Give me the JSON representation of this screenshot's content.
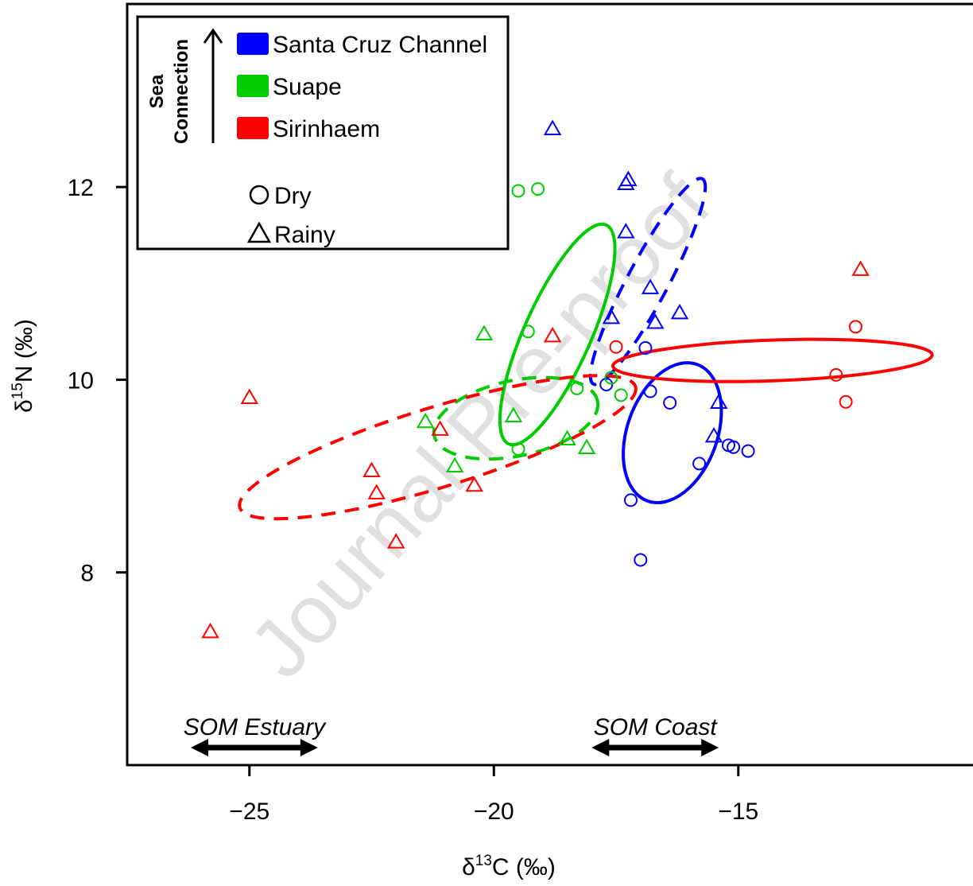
{
  "chart_data": {
    "type": "scatter",
    "xlabel": {
      "prefix": "δ",
      "sup": "13",
      "suffix": "C (‰)"
    },
    "ylabel": {
      "prefix": "δ",
      "sup": "15",
      "suffix": "N (‰)"
    },
    "xlim": [
      -27.5,
      -10.2
    ],
    "ylim": [
      6.0,
      13.9
    ],
    "xticks": [
      -25,
      -20,
      -15
    ],
    "xtick_labels": [
      "−25",
      "−20",
      "−15"
    ],
    "yticks": [
      8,
      10,
      12
    ],
    "ytick_labels": [
      "8",
      "10",
      "12"
    ],
    "grid": false,
    "legend": {
      "placement": "top-left",
      "arrow_label_line1": "Sea",
      "arrow_label_line2": "Connection",
      "sites": [
        {
          "name": "Santa Cruz Channel",
          "color": "#0000ff"
        },
        {
          "name": "Suape",
          "color": "#00cc00"
        },
        {
          "name": "Sirinhaem",
          "color": "#ff0000"
        }
      ],
      "seasons": [
        {
          "name": "Dry",
          "marker": "circle"
        },
        {
          "name": "Rainy",
          "marker": "triangle"
        }
      ]
    },
    "watermark": "Journal Pre-proof",
    "annotations": [
      {
        "text": "SOM Estuary",
        "x_from": -26.2,
        "x_to": -23.6
      },
      {
        "text": "SOM Coast",
        "x_from": -18.0,
        "x_to": -15.4
      }
    ],
    "series": [
      {
        "name": "Santa Cruz Channel",
        "season": "Dry",
        "marker": "circle",
        "color": "#0000ff",
        "points": [
          [
            -17.7,
            9.95
          ],
          [
            -16.9,
            10.33
          ],
          [
            -16.8,
            9.88
          ],
          [
            -16.4,
            9.76
          ],
          [
            -15.8,
            9.13
          ],
          [
            -15.2,
            9.32
          ],
          [
            -15.1,
            9.3
          ],
          [
            -14.8,
            9.26
          ],
          [
            -17.2,
            8.75
          ],
          [
            -17.0,
            8.13
          ]
        ]
      },
      {
        "name": "Santa Cruz Channel",
        "season": "Rainy",
        "marker": "triangle",
        "color": "#0000ff",
        "points": [
          [
            -18.8,
            12.6
          ],
          [
            -17.3,
            12.03
          ],
          [
            -17.25,
            12.07
          ],
          [
            -17.3,
            11.53
          ],
          [
            -16.8,
            10.95
          ],
          [
            -17.6,
            10.64
          ],
          [
            -16.7,
            10.59
          ],
          [
            -16.2,
            10.69
          ],
          [
            -15.4,
            9.76
          ],
          [
            -15.5,
            9.41
          ]
        ]
      },
      {
        "name": "Suape",
        "season": "Dry",
        "marker": "circle",
        "color": "#00cc00",
        "points": [
          [
            -19.5,
            11.96
          ],
          [
            -19.1,
            11.98
          ],
          [
            -19.3,
            10.5
          ],
          [
            -18.3,
            9.91
          ],
          [
            -17.6,
            10.02
          ],
          [
            -17.4,
            9.84
          ],
          [
            -19.5,
            9.28
          ]
        ]
      },
      {
        "name": "Suape",
        "season": "Rainy",
        "marker": "triangle",
        "color": "#00cc00",
        "points": [
          [
            -20.2,
            10.47
          ],
          [
            -21.4,
            9.56
          ],
          [
            -19.6,
            9.62
          ],
          [
            -20.8,
            9.1
          ],
          [
            -18.5,
            9.38
          ],
          [
            -18.1,
            9.29
          ]
        ]
      },
      {
        "name": "Sirinhaem",
        "season": "Dry",
        "marker": "circle",
        "color": "#ff0000",
        "points": [
          [
            -17.5,
            10.34
          ],
          [
            -12.6,
            10.55
          ],
          [
            -13.0,
            10.05
          ],
          [
            -12.8,
            9.77
          ]
        ]
      },
      {
        "name": "Sirinhaem",
        "season": "Rainy",
        "marker": "triangle",
        "color": "#ff0000",
        "points": [
          [
            -12.5,
            11.14
          ],
          [
            -25.0,
            9.81
          ],
          [
            -18.8,
            10.45
          ],
          [
            -21.1,
            9.48
          ],
          [
            -22.5,
            9.05
          ],
          [
            -22.4,
            8.82
          ],
          [
            -20.4,
            8.9
          ],
          [
            -22.0,
            8.31
          ],
          [
            -25.8,
            7.38
          ]
        ]
      }
    ],
    "ellipses": [
      {
        "name": "Santa Cruz Channel",
        "season": "Dry",
        "style": "solid",
        "color": "#0000ff",
        "cx": -16.35,
        "cy": 9.45,
        "rx": 2.0,
        "ry": 0.62,
        "angle_deg": -70
      },
      {
        "name": "Santa Cruz Channel",
        "season": "Rainy",
        "style": "dashed",
        "color": "#0000ff",
        "cx": -16.85,
        "cy": 11.02,
        "rx": 3.2,
        "ry": 0.28,
        "angle_deg": -62
      },
      {
        "name": "Suape",
        "season": "Dry",
        "style": "solid",
        "color": "#00cc00",
        "cx": -18.7,
        "cy": 10.47,
        "rx": 3.3,
        "ry": 0.46,
        "angle_deg": -66
      },
      {
        "name": "Suape",
        "season": "Rainy",
        "style": "dashed",
        "color": "#00cc00",
        "cx": -19.55,
        "cy": 9.6,
        "rx": 2.3,
        "ry": 0.52,
        "angle_deg": -12
      },
      {
        "name": "Sirinhaem",
        "season": "Dry",
        "style": "solid",
        "color": "#ff0000",
        "cx": -14.3,
        "cy": 10.2,
        "rx": 4.4,
        "ry": 0.28,
        "angle_deg": -2
      },
      {
        "name": "Sirinhaem",
        "season": "Rainy",
        "style": "dashed",
        "color": "#ff0000",
        "cx": -21.15,
        "cy": 9.3,
        "rx": 5.7,
        "ry": 0.55,
        "angle_deg": -17
      }
    ]
  }
}
